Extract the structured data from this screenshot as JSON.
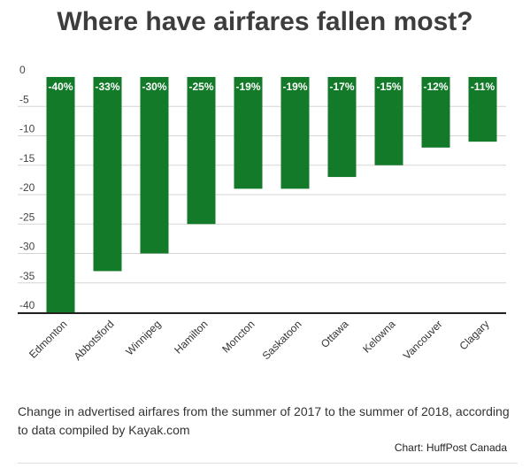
{
  "chart_data": {
    "type": "bar",
    "title": "Where have airfares fallen most?",
    "categories": [
      "Edmonton",
      "Abbotsford",
      "Winnipeg",
      "Hamilton",
      "Moncton",
      "Saskatoon",
      "Ottawa",
      "Kelowna",
      "Vancouver",
      "Clagary"
    ],
    "values": [
      -40,
      -33,
      -30,
      -25,
      -19,
      -19,
      -17,
      -15,
      -12,
      -11
    ],
    "data_labels": [
      "-40%",
      "-33%",
      "-30%",
      "-25%",
      "-19%",
      "-19%",
      "-17%",
      "-15%",
      "-12%",
      "-11%"
    ],
    "yticks": [
      0,
      -5,
      -10,
      -15,
      -20,
      -25,
      -30,
      -35,
      -40
    ],
    "ylim": [
      -40,
      0
    ],
    "grid": true,
    "bar_color": "#137a2a",
    "label_color": "#ffffff"
  },
  "caption": "Change in advertised airfares from the summer of 2017 to the summer of 2018, according to data compiled by Kayak.com",
  "source": "Chart: HuffPost Canada"
}
